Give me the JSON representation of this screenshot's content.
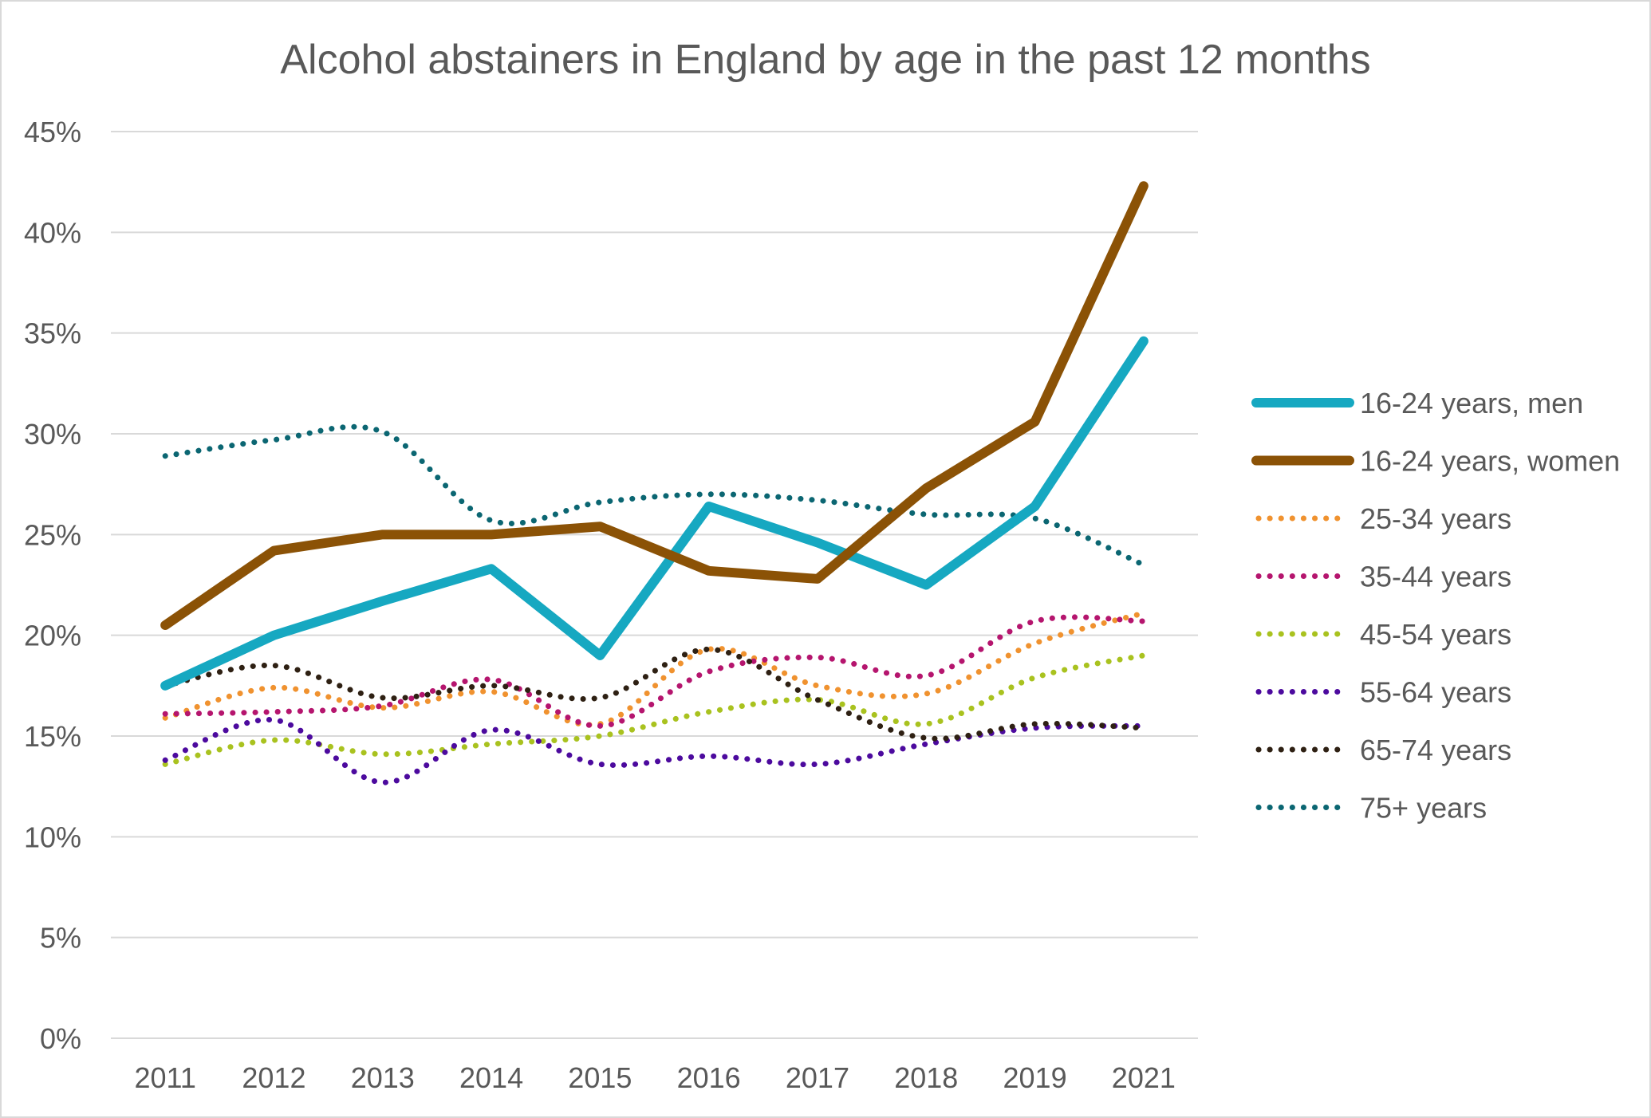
{
  "chart_data": {
    "type": "line",
    "title": "Alcohol abstainers in England by age in the past 12 months",
    "xlabel": "",
    "ylabel": "",
    "categories": [
      "2011",
      "2012",
      "2013",
      "2014",
      "2015",
      "2016",
      "2017",
      "2018",
      "2019",
      "2021"
    ],
    "ylim": [
      0,
      45
    ],
    "y_ticks": [
      "0%",
      "5%",
      "10%",
      "15%",
      "20%",
      "25%",
      "30%",
      "35%",
      "40%",
      "45%"
    ],
    "grid": true,
    "legend_position": "right",
    "series": [
      {
        "name": "16-24 years, men",
        "color": "#16a8c1",
        "style": "solid",
        "values": [
          17.5,
          20.0,
          21.7,
          23.3,
          19.0,
          26.4,
          24.6,
          22.5,
          26.4,
          34.6
        ]
      },
      {
        "name": "16-24 years, women",
        "color": "#8b5206",
        "style": "solid",
        "values": [
          20.5,
          24.2,
          25.0,
          25.0,
          25.4,
          23.2,
          22.8,
          27.3,
          30.6,
          42.3
        ]
      },
      {
        "name": "25-34 years",
        "color": "#f0922f",
        "style": "dotted",
        "values": [
          15.9,
          17.4,
          16.4,
          17.2,
          15.6,
          19.3,
          17.5,
          17.1,
          19.6,
          21.1
        ]
      },
      {
        "name": "35-44 years",
        "color": "#b5156e",
        "style": "dotted",
        "values": [
          16.1,
          16.2,
          16.5,
          17.8,
          15.5,
          18.2,
          18.9,
          18.0,
          20.7,
          20.7
        ]
      },
      {
        "name": "45-54 years",
        "color": "#a9c21f",
        "style": "dotted",
        "values": [
          13.6,
          14.8,
          14.1,
          14.6,
          15.0,
          16.2,
          16.8,
          15.6,
          17.9,
          19.0
        ]
      },
      {
        "name": "55-64 years",
        "color": "#4c0a9e",
        "style": "dotted",
        "values": [
          13.8,
          15.8,
          12.7,
          15.3,
          13.6,
          14.0,
          13.6,
          14.6,
          15.4,
          15.5
        ]
      },
      {
        "name": "65-74 years",
        "color": "#2e2013",
        "style": "dotted",
        "values": [
          17.5,
          18.5,
          16.9,
          17.5,
          16.9,
          19.3,
          16.8,
          14.9,
          15.6,
          15.4
        ]
      },
      {
        "name": "75+ years",
        "color": "#0b6672",
        "style": "dotted",
        "values": [
          28.9,
          29.7,
          30.1,
          25.7,
          26.6,
          27.0,
          26.7,
          26.0,
          25.8,
          23.5
        ]
      }
    ]
  }
}
